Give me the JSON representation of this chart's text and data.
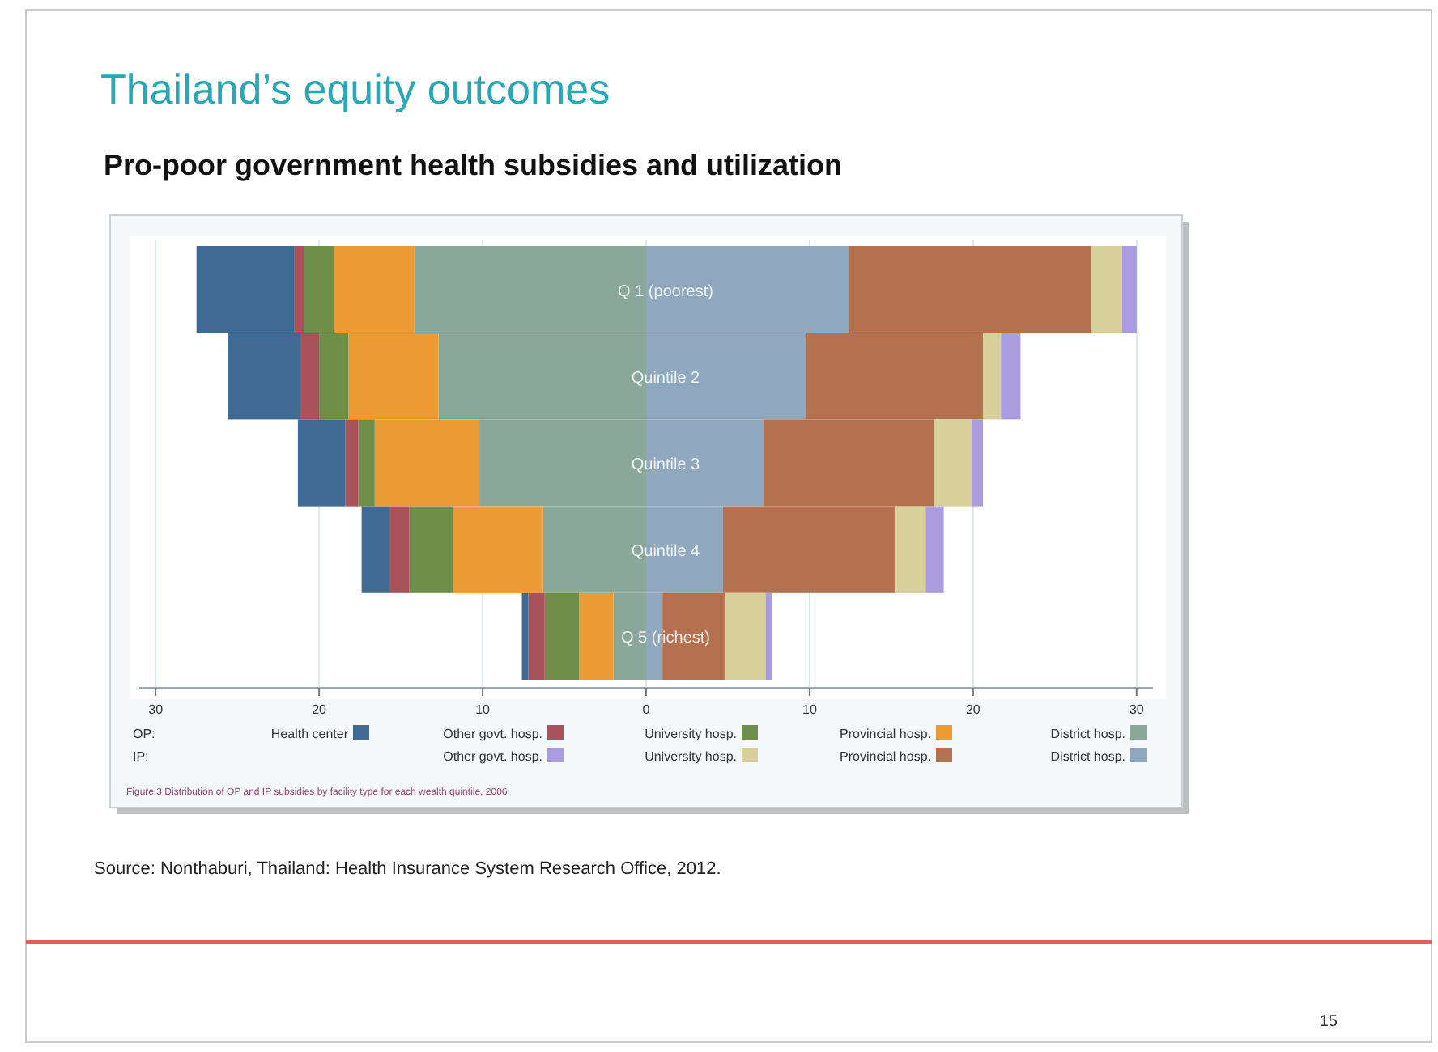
{
  "chart_data": {
    "type": "bar",
    "orientation": "horizontal",
    "stacked": true,
    "title": "Thailand’s equity outcomes",
    "subtitle": "Pro-poor government health subsidies and utilization",
    "categories": [
      "Q 1 (poorest)",
      "Quintile 2",
      "Quintile 3",
      "Quintile 4",
      "Q 5 (richest)"
    ],
    "series": [
      {
        "name": "District hosp.",
        "color": "#8aa89a",
        "values": [
          -14.2,
          -12.7,
          -10.2,
          -6.3,
          -2.0
        ]
      },
      {
        "name": "Provincial hosp.",
        "color": "#ec9a34",
        "values": [
          -4.9,
          -5.5,
          -6.4,
          -5.5,
          -2.1
        ]
      },
      {
        "name": "University hosp.",
        "color": "#6e8e4a",
        "values": [
          -1.8,
          -1.8,
          -1.0,
          -2.7,
          -2.1
        ]
      },
      {
        "name": "Other govt. hosp.",
        "color": "#a8525b",
        "values": [
          -0.6,
          -1.1,
          -0.8,
          -1.2,
          -1.0
        ]
      },
      {
        "name": "Health center",
        "color": "#3f6a93",
        "values": [
          -6.0,
          -4.5,
          -2.9,
          -1.7,
          -0.4
        ]
      },
      {
        "name": "District hosp.",
        "color": "#90a8bd",
        "values": [
          12.4,
          9.8,
          7.2,
          4.7,
          1.0
        ]
      },
      {
        "name": "Provincial hosp.",
        "color": "#b5714f",
        "values": [
          14.8,
          10.8,
          10.4,
          10.5,
          3.8
        ]
      },
      {
        "name": "University hosp.",
        "color": "#d8d09a",
        "values": [
          1.9,
          1.1,
          2.3,
          1.9,
          2.5
        ]
      },
      {
        "name": "Other govt. hosp.",
        "color": "#a99de0",
        "values": [
          0.9,
          1.2,
          0.7,
          1.1,
          0.4
        ]
      }
    ],
    "xlim": [
      -31,
      31
    ],
    "xticks": [
      {
        "value": -30,
        "label": "30"
      },
      {
        "value": -20,
        "label": "20"
      },
      {
        "value": -10,
        "label": "10"
      },
      0,
      10,
      20,
      30
    ],
    "grid": "x",
    "legend": "bottom",
    "annotations": [
      "OP:",
      "IP:",
      "Figure 3 Distribution of OP and IP subsidies by facility type for each wealth quintile, 2006",
      "Source: Nonthaburi, Thailand: Health Insurance System Research Office, 2012.",
      "15"
    ]
  }
}
